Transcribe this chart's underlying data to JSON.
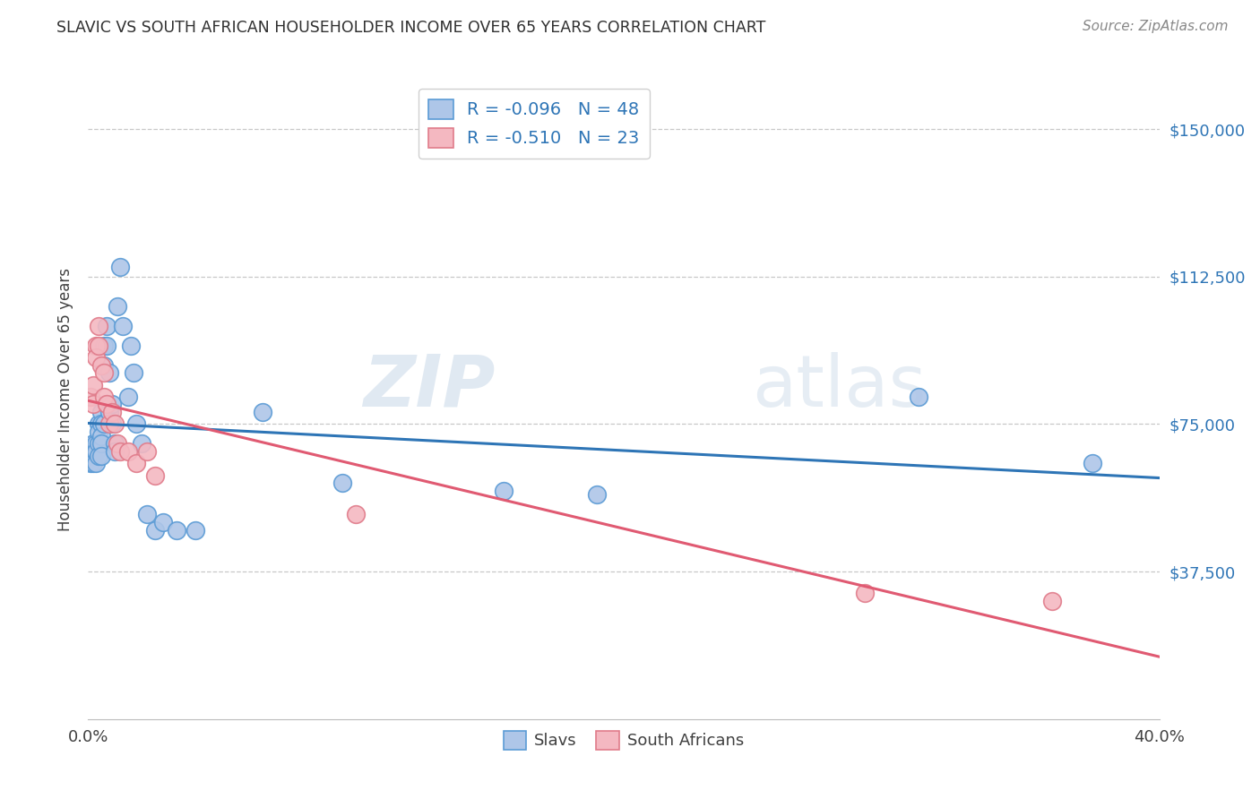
{
  "title": "SLAVIC VS SOUTH AFRICAN HOUSEHOLDER INCOME OVER 65 YEARS CORRELATION CHART",
  "source": "Source: ZipAtlas.com",
  "ylabel": "Householder Income Over 65 years",
  "watermark_zip": "ZIP",
  "watermark_atlas": "atlas",
  "xlim": [
    0.0,
    0.4
  ],
  "ylim": [
    0,
    162500
  ],
  "yticks": [
    37500,
    75000,
    112500,
    150000
  ],
  "ytick_labels": [
    "$37,500",
    "$75,000",
    "$112,500",
    "$150,000"
  ],
  "slavs_color": "#aec6e8",
  "slavs_edge_color": "#5b9bd5",
  "sa_color": "#f4b8c1",
  "sa_edge_color": "#e07b8a",
  "slavs_line_color": "#2e75b6",
  "sa_line_color": "#e05a72",
  "legend_text_color": "#2e75b6",
  "title_color": "#404040",
  "slavs_R": "-0.096",
  "slavs_N": "48",
  "sa_R": "-0.510",
  "sa_N": "23",
  "slavs_x": [
    0.001,
    0.001,
    0.002,
    0.002,
    0.002,
    0.003,
    0.003,
    0.003,
    0.004,
    0.004,
    0.004,
    0.004,
    0.005,
    0.005,
    0.005,
    0.005,
    0.005,
    0.006,
    0.006,
    0.006,
    0.007,
    0.007,
    0.007,
    0.008,
    0.008,
    0.009,
    0.009,
    0.01,
    0.01,
    0.011,
    0.012,
    0.013,
    0.015,
    0.016,
    0.017,
    0.018,
    0.02,
    0.022,
    0.025,
    0.028,
    0.033,
    0.04,
    0.065,
    0.095,
    0.155,
    0.19,
    0.31,
    0.375
  ],
  "slavs_y": [
    68000,
    65000,
    70000,
    67000,
    65000,
    70000,
    68000,
    65000,
    75000,
    73000,
    70000,
    67000,
    78000,
    75000,
    72000,
    70000,
    67000,
    95000,
    90000,
    75000,
    100000,
    95000,
    80000,
    88000,
    78000,
    80000,
    75000,
    70000,
    68000,
    105000,
    115000,
    100000,
    82000,
    95000,
    88000,
    75000,
    70000,
    52000,
    48000,
    50000,
    48000,
    48000,
    78000,
    60000,
    58000,
    57000,
    82000,
    65000
  ],
  "sa_x": [
    0.001,
    0.002,
    0.002,
    0.003,
    0.003,
    0.004,
    0.004,
    0.005,
    0.006,
    0.006,
    0.007,
    0.008,
    0.009,
    0.01,
    0.011,
    0.012,
    0.015,
    0.018,
    0.022,
    0.025,
    0.1,
    0.29,
    0.36
  ],
  "sa_y": [
    82000,
    85000,
    80000,
    95000,
    92000,
    100000,
    95000,
    90000,
    88000,
    82000,
    80000,
    75000,
    78000,
    75000,
    70000,
    68000,
    68000,
    65000,
    68000,
    62000,
    52000,
    32000,
    30000
  ]
}
